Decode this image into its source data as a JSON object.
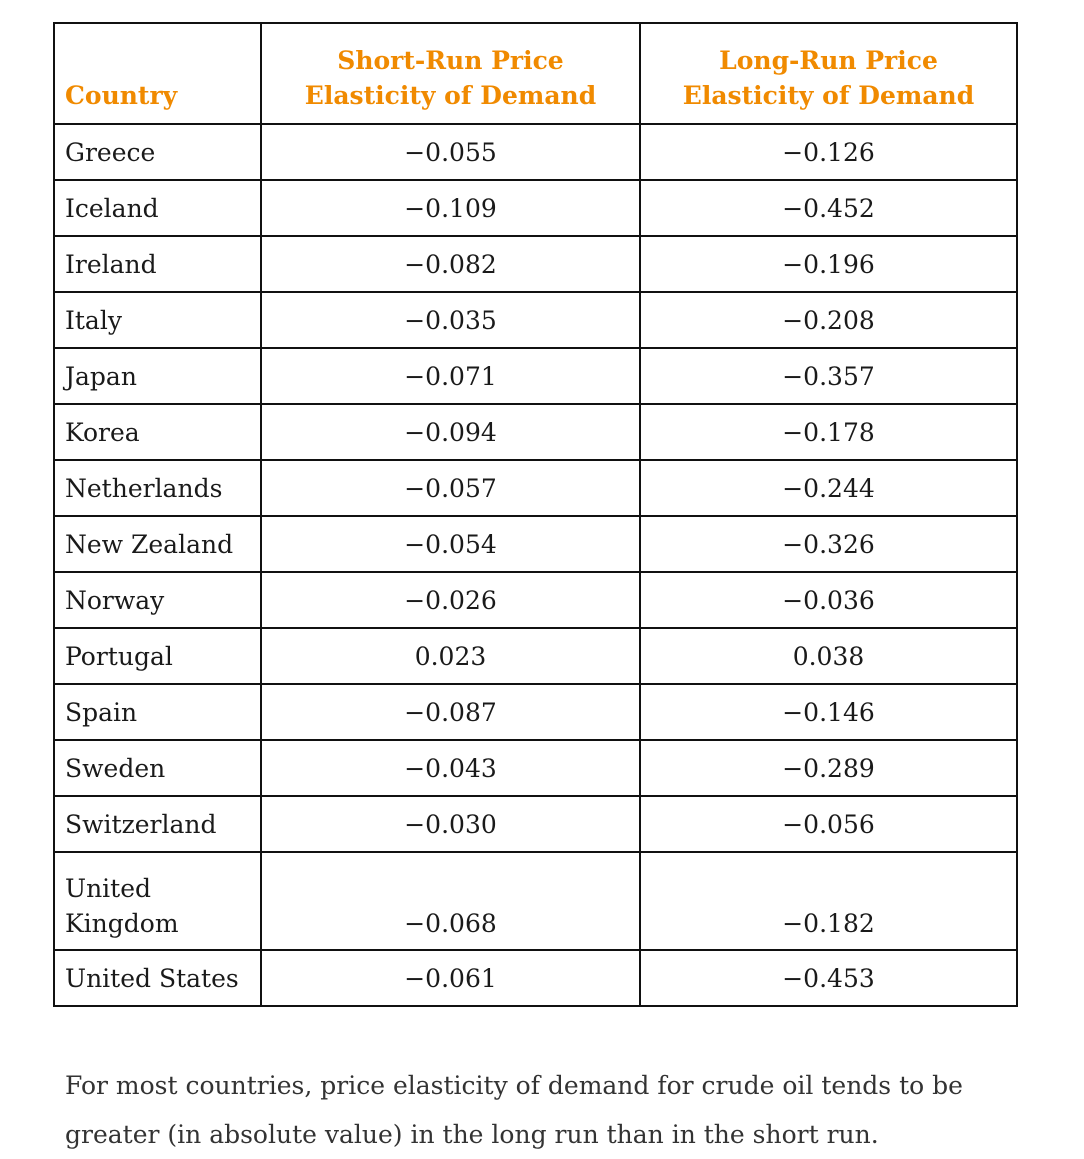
{
  "table": {
    "headers": {
      "country": "Country",
      "short_run": "Short-Run Price Elasticity of Demand",
      "long_run": "Long-Run Price Elasticity of Demand"
    },
    "rows": [
      {
        "country": "Greece",
        "short_run": "−0.055",
        "long_run": "−0.126"
      },
      {
        "country": "Iceland",
        "short_run": "−0.109",
        "long_run": "−0.452"
      },
      {
        "country": "Ireland",
        "short_run": "−0.082",
        "long_run": "−0.196"
      },
      {
        "country": "Italy",
        "short_run": "−0.035",
        "long_run": "−0.208"
      },
      {
        "country": "Japan",
        "short_run": "−0.071",
        "long_run": "−0.357"
      },
      {
        "country": "Korea",
        "short_run": "−0.094",
        "long_run": "−0.178"
      },
      {
        "country": "Netherlands",
        "short_run": "−0.057",
        "long_run": "−0.244"
      },
      {
        "country": "New Zealand",
        "short_run": "−0.054",
        "long_run": "−0.326"
      },
      {
        "country": "Norway",
        "short_run": "−0.026",
        "long_run": "−0.036"
      },
      {
        "country": "Portugal",
        "short_run": "0.023",
        "long_run": "0.038"
      },
      {
        "country": "Spain",
        "short_run": "−0.087",
        "long_run": "−0.146"
      },
      {
        "country": "Sweden",
        "short_run": "−0.043",
        "long_run": "−0.289"
      },
      {
        "country": "Switzerland",
        "short_run": "−0.030",
        "long_run": "−0.056"
      },
      {
        "country": "United Kingdom",
        "short_run": "−0.068",
        "long_run": "−0.182"
      },
      {
        "country": "United States",
        "short_run": "−0.061",
        "long_run": "−0.453"
      }
    ]
  },
  "caption": "For most countries, price elasticity of demand for crude oil tends to be greater (in absolute value) in the long run than in the short run.",
  "colors": {
    "header_text": "#f08a00",
    "border": "#111111"
  }
}
